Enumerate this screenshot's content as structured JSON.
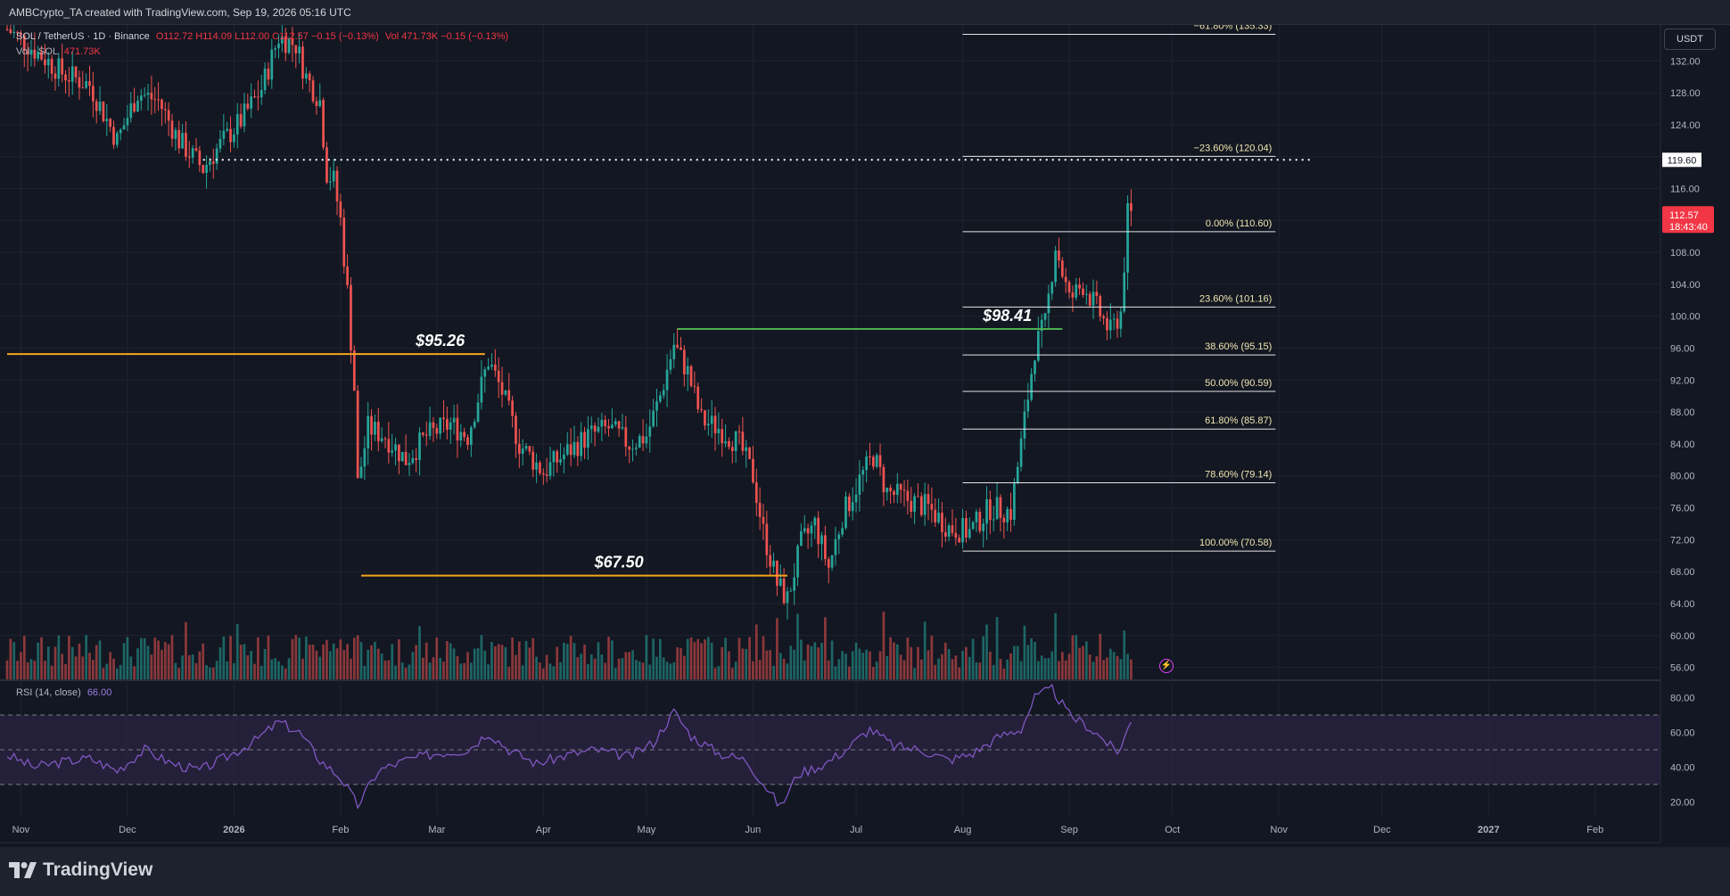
{
  "header": {
    "attribution": "AMBCrypto_TA created with TradingView.com, Sep 19, 2026 05:16 UTC",
    "currency": "USDT"
  },
  "legend": {
    "symbol": "SOL / TetherUS · 1D · Binance",
    "ohlc": "O112.72 H114.09 L112.00 C112.57 −0.15 (−0.13%)",
    "vol_main": "Vol 471.73K −0.15 (−0.13%)",
    "vol_label": "Vol · SOL",
    "vol_value": "471.73K",
    "rsi_label": "RSI (14, close)",
    "rsi_value": "66.00"
  },
  "footer": {
    "brand": "TradingView"
  },
  "colors": {
    "background": "#131722",
    "up": "#26a69a",
    "down": "#ef5350",
    "orange": "#f7a51c",
    "green_line": "#4caf50",
    "rsi": "#7e57c2",
    "rsi_band": "#2a2340"
  },
  "chart_data": [
    {
      "type": "candlestick",
      "title": "SOL / TetherUS · 1D · Binance",
      "y_ticks": [
        56.0,
        60.0,
        64.0,
        68.0,
        72.0,
        76.0,
        80.0,
        84.0,
        88.0,
        92.0,
        96.0,
        100.0,
        104.0,
        108.0,
        112.0,
        116.0,
        120.0,
        124.0,
        128.0,
        132.0
      ],
      "ylim": [
        54.5,
        136.5
      ],
      "x_ticks": [
        "Nov",
        "Dec",
        "2026",
        "Feb",
        "Mar",
        "Apr",
        "May",
        "Jun",
        "Jul",
        "Aug",
        "Sep",
        "Oct",
        "Nov",
        "Dec",
        "2027",
        "Feb"
      ],
      "x_dates": [
        "2025-10-31",
        "2025-12-01",
        "2026-01-01",
        "2026-02-01",
        "2026-03-01",
        "2026-04-01",
        "2026-05-01",
        "2026-06-01",
        "2026-07-01",
        "2026-08-01",
        "2026-09-01",
        "2026-10-01",
        "2026-11-01",
        "2026-12-01",
        "2027-01-01",
        "2027-02-01"
      ],
      "close_path": [
        [
          "2025-10-27",
          136.0
        ],
        [
          "2025-11-05",
          133.0
        ],
        [
          "2025-11-12",
          130.5
        ],
        [
          "2025-11-20",
          129.0
        ],
        [
          "2025-11-28",
          122.0
        ],
        [
          "2025-12-04",
          128.0
        ],
        [
          "2025-12-10",
          127.0
        ],
        [
          "2025-12-16",
          122.0
        ],
        [
          "2025-12-23",
          118.5
        ],
        [
          "2025-12-28",
          121.5
        ],
        [
          "2026-01-03",
          124.5
        ],
        [
          "2026-01-09",
          128.5
        ],
        [
          "2026-01-14",
          135.0
        ],
        [
          "2026-01-19",
          134.0
        ],
        [
          "2026-01-22",
          130.0
        ],
        [
          "2026-01-26",
          127.0
        ],
        [
          "2026-01-28",
          118.0
        ],
        [
          "2026-01-30",
          117.0
        ],
        [
          "2026-02-01",
          112.0
        ],
        [
          "2026-02-03",
          103.0
        ],
        [
          "2026-02-05",
          91.0
        ],
        [
          "2026-02-06",
          79.0
        ],
        [
          "2026-02-09",
          86.0
        ],
        [
          "2026-02-14",
          85.0
        ],
        [
          "2026-02-20",
          82.0
        ],
        [
          "2026-02-26",
          85.0
        ],
        [
          "2026-03-05",
          86.5
        ],
        [
          "2026-03-10",
          85.0
        ],
        [
          "2026-03-16",
          94.5
        ],
        [
          "2026-03-20",
          90.5
        ],
        [
          "2026-03-25",
          84.0
        ],
        [
          "2026-04-01",
          80.5
        ],
        [
          "2026-04-08",
          83.0
        ],
        [
          "2026-04-14",
          85.0
        ],
        [
          "2026-04-20",
          86.0
        ],
        [
          "2026-04-26",
          84.0
        ],
        [
          "2026-05-01",
          85.0
        ],
        [
          "2026-05-05",
          90.0
        ],
        [
          "2026-05-09",
          96.5
        ],
        [
          "2026-05-13",
          93.0
        ],
        [
          "2026-05-17",
          87.0
        ],
        [
          "2026-05-22",
          86.0
        ],
        [
          "2026-05-28",
          84.0
        ],
        [
          "2026-06-01",
          80.0
        ],
        [
          "2026-06-04",
          73.0
        ],
        [
          "2026-06-08",
          66.5
        ],
        [
          "2026-06-11",
          64.5
        ],
        [
          "2026-06-15",
          71.5
        ],
        [
          "2026-06-19",
          74.0
        ],
        [
          "2026-06-23",
          68.5
        ],
        [
          "2026-06-27",
          75.0
        ],
        [
          "2026-07-02",
          79.5
        ],
        [
          "2026-07-06",
          82.5
        ],
        [
          "2026-07-10",
          78.0
        ],
        [
          "2026-07-16",
          77.0
        ],
        [
          "2026-07-22",
          76.0
        ],
        [
          "2026-07-28",
          73.5
        ],
        [
          "2026-08-03",
          73.0
        ],
        [
          "2026-08-09",
          76.0
        ],
        [
          "2026-08-15",
          75.5
        ],
        [
          "2026-08-18",
          84.0
        ],
        [
          "2026-08-22",
          96.0
        ],
        [
          "2026-08-25",
          99.0
        ],
        [
          "2026-08-28",
          109.0
        ],
        [
          "2026-09-01",
          102.0
        ],
        [
          "2026-09-05",
          104.0
        ],
        [
          "2026-09-09",
          101.0
        ],
        [
          "2026-09-13",
          98.0
        ],
        [
          "2026-09-16",
          100.5
        ],
        [
          "2026-09-18",
          112.7
        ],
        [
          "2026-09-19",
          112.57
        ]
      ],
      "annotations": [
        {
          "text": "$95.26",
          "price": 95.26,
          "from": "2025-10-27",
          "to": "2026-03-15",
          "color": "#f7a51c",
          "label_at": "2026-03-02"
        },
        {
          "text": "$67.50",
          "price": 67.5,
          "from": "2026-02-07",
          "to": "2026-06-11",
          "color": "#f7a51c",
          "label_at": "2026-04-23"
        },
        {
          "text": "$98.41",
          "price": 98.41,
          "from": "2026-05-10",
          "to": "2026-08-30",
          "color": "#4caf50",
          "label_at": "2026-08-14"
        }
      ],
      "dotted_level": {
        "price": 119.6,
        "label": "119.60",
        "from": "2025-12-23",
        "to": "2026-10-31"
      },
      "last_price": {
        "price": 112.57,
        "label": "112.57",
        "countdown": "18:43:40"
      },
      "fib_levels": [
        {
          "label": "−61.80% (135.33)",
          "price": 135.33
        },
        {
          "label": "−23.60% (120.04)",
          "price": 120.04
        },
        {
          "label": "0.00% (110.60)",
          "price": 110.6
        },
        {
          "label": "23.60% (101.16)",
          "price": 101.16
        },
        {
          "label": "38.60% (95.15)",
          "price": 95.15
        },
        {
          "label": "50.00% (90.59)",
          "price": 90.59
        },
        {
          "label": "61.80% (85.87)",
          "price": 85.87
        },
        {
          "label": "78.60% (79.14)",
          "price": 79.14
        },
        {
          "label": "100.00% (70.58)",
          "price": 70.58
        }
      ],
      "fib_range": [
        "2026-08-01",
        "2026-10-31"
      ]
    },
    {
      "type": "line",
      "title": "RSI (14, close)",
      "y_ticks": [
        20.0,
        40.0,
        60.0,
        80.0
      ],
      "ylim": [
        12,
        90
      ],
      "bands": [
        30,
        50,
        70
      ],
      "rsi_path": [
        [
          "2025-10-27",
          47
        ],
        [
          "2025-11-04",
          40
        ],
        [
          "2025-11-12",
          43
        ],
        [
          "2025-11-20",
          45
        ],
        [
          "2025-11-28",
          38
        ],
        [
          "2025-12-06",
          50
        ],
        [
          "2025-12-14",
          42
        ],
        [
          "2025-12-22",
          38
        ],
        [
          "2025-12-30",
          46
        ],
        [
          "2026-01-07",
          55
        ],
        [
          "2026-01-14",
          66
        ],
        [
          "2026-01-20",
          60
        ],
        [
          "2026-01-26",
          44
        ],
        [
          "2026-02-01",
          34
        ],
        [
          "2026-02-06",
          18
        ],
        [
          "2026-02-12",
          38
        ],
        [
          "2026-02-20",
          44
        ],
        [
          "2026-03-01",
          48
        ],
        [
          "2026-03-10",
          50
        ],
        [
          "2026-03-16",
          60
        ],
        [
          "2026-03-22",
          50
        ],
        [
          "2026-03-30",
          42
        ],
        [
          "2026-04-08",
          47
        ],
        [
          "2026-04-16",
          50
        ],
        [
          "2026-04-26",
          46
        ],
        [
          "2026-05-03",
          54
        ],
        [
          "2026-05-09",
          72
        ],
        [
          "2026-05-14",
          58
        ],
        [
          "2026-05-22",
          48
        ],
        [
          "2026-05-30",
          44
        ],
        [
          "2026-06-05",
          28
        ],
        [
          "2026-06-09",
          17
        ],
        [
          "2026-06-14",
          36
        ],
        [
          "2026-06-22",
          42
        ],
        [
          "2026-06-28",
          50
        ],
        [
          "2026-07-05",
          62
        ],
        [
          "2026-07-12",
          52
        ],
        [
          "2026-07-20",
          50
        ],
        [
          "2026-07-28",
          44
        ],
        [
          "2026-08-04",
          48
        ],
        [
          "2026-08-12",
          58
        ],
        [
          "2026-08-18",
          62
        ],
        [
          "2026-08-22",
          80
        ],
        [
          "2026-08-27",
          85
        ],
        [
          "2026-09-01",
          70
        ],
        [
          "2026-09-06",
          64
        ],
        [
          "2026-09-11",
          56
        ],
        [
          "2026-09-15",
          48
        ],
        [
          "2026-09-19",
          66
        ]
      ]
    }
  ]
}
